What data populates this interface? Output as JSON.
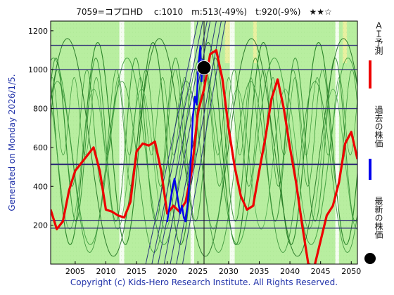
{
  "header": {
    "title": "7059=コプロHD　 c:1010　m:513(-49%)　t:920(-9%)　★★☆"
  },
  "side_label": "Generated on Monday 2026/1/5.",
  "copyright": "Copyright (c) Kids-Hero Research Institute. All Rights Reserved.",
  "legend": [
    {
      "label": "ＡＩ予測",
      "color": "#ee0000"
    },
    {
      "label": "過去の株価",
      "color": "#0000ee"
    },
    {
      "label": "最新の株価",
      "color": "#000000"
    }
  ],
  "colors": {
    "background_light_green": "#b8eea0",
    "background_white_band": "#ffffff",
    "grid_line": "#333377",
    "ai_line": "#ee0000",
    "past_price": "#0000ee",
    "latest_marker": "#000000",
    "cycle_lines": "#228822"
  },
  "chart_data": {
    "type": "line",
    "xlim": [
      2001,
      2051
    ],
    "ylim": [
      0,
      1250
    ],
    "xticks": [
      2005,
      2010,
      2015,
      2020,
      2025,
      2030,
      2035,
      2040,
      2045,
      2050
    ],
    "yticks": [
      200,
      400,
      600,
      800,
      1000,
      1200
    ],
    "hlines": [
      1125,
      1000,
      800,
      513,
      225,
      185
    ],
    "vline": 2026,
    "latest_point": {
      "x": 2026,
      "y": 1010
    },
    "series": [
      {
        "key": "ai_prediction",
        "x": [
          2001,
          2002,
          2003,
          2004,
          2005,
          2006,
          2007,
          2008,
          2009,
          2010,
          2011,
          2012,
          2013,
          2014,
          2015,
          2016,
          2017,
          2018,
          2019,
          2020,
          2021,
          2022,
          2023,
          2024,
          2025,
          2026,
          2027,
          2028,
          2029,
          2030,
          2031,
          2032,
          2033,
          2034,
          2035,
          2036,
          2037,
          2038,
          2039,
          2040,
          2041,
          2042,
          2043,
          2044,
          2045,
          2046,
          2047,
          2048,
          2049,
          2050,
          2051
        ],
        "y": [
          280,
          180,
          220,
          380,
          480,
          520,
          560,
          600,
          480,
          280,
          270,
          250,
          240,
          320,
          580,
          620,
          610,
          630,
          480,
          260,
          300,
          270,
          320,
          480,
          780,
          900,
          1080,
          1100,
          950,
          700,
          500,
          350,
          280,
          300,
          480,
          650,
          850,
          950,
          800,
          600,
          420,
          200,
          0,
          -10,
          120,
          250,
          300,
          420,
          620,
          680,
          540
        ]
      },
      {
        "key": "past_price",
        "x": [
          2020.0,
          2020.3,
          2020.6,
          2020.9,
          2021.2,
          2021.5,
          2021.8,
          2022.1,
          2022.4,
          2022.7,
          2023.0,
          2023.3,
          2023.6,
          2023.9,
          2024.2,
          2024.5,
          2024.8,
          2025.0,
          2025.2,
          2025.4,
          2025.6,
          2025.8,
          2026.0
        ],
        "y": [
          220,
          280,
          340,
          400,
          440,
          380,
          320,
          260,
          300,
          240,
          220,
          300,
          420,
          560,
          760,
          860,
          820,
          980,
          1060,
          1120,
          940,
          1050,
          1010
        ]
      }
    ]
  }
}
